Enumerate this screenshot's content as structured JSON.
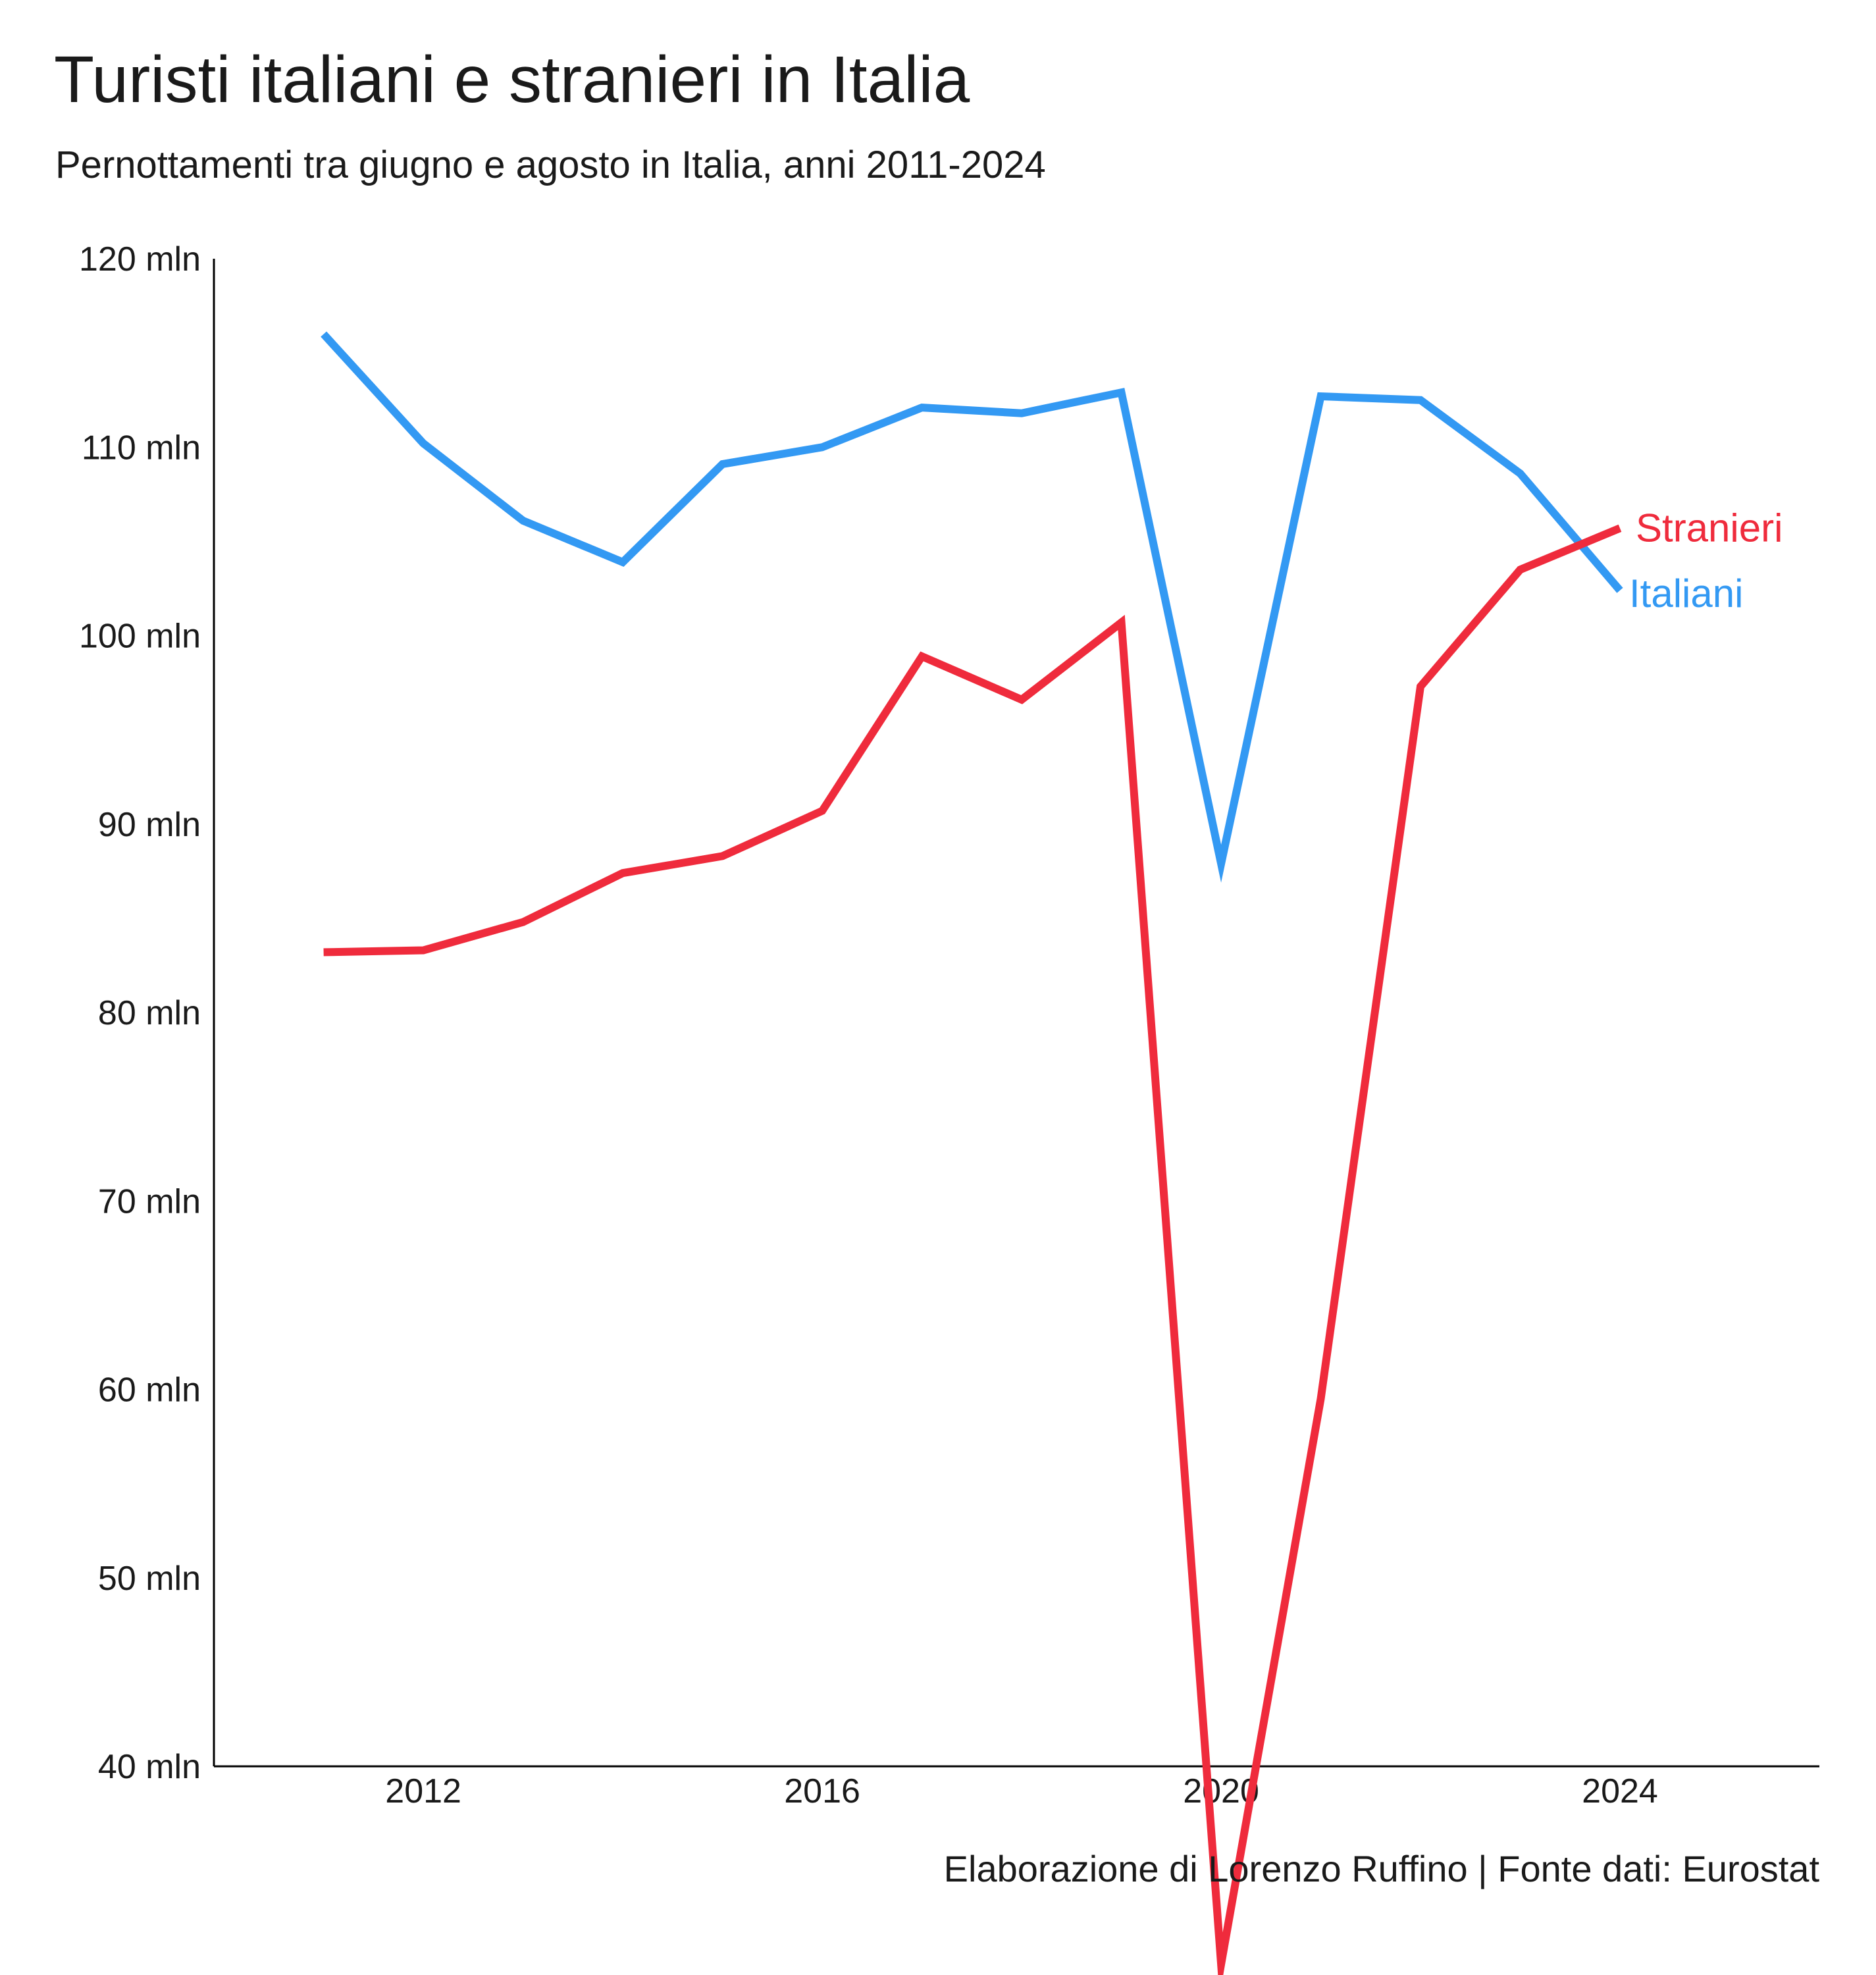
{
  "chart_data": {
    "type": "line",
    "title": "Turisti italiani e stranieri in Italia",
    "subtitle": "Pernottamenti tra giugno e agosto in Italia, anni 2011-2024",
    "caption": "Elaborazione di Lorenzo Ruffino | Fonte dati: Eurostat",
    "xlabel": "",
    "ylabel": "",
    "x": [
      2011,
      2012,
      2013,
      2014,
      2015,
      2016,
      2017,
      2018,
      2019,
      2020,
      2021,
      2022,
      2023,
      2024
    ],
    "xlim": [
      2009.9,
      2026
    ],
    "ylim": [
      40,
      120
    ],
    "x_ticks": [
      2012,
      2016,
      2020,
      2024
    ],
    "x_tick_labels": [
      "2012",
      "2016",
      "2020",
      "2024"
    ],
    "y_ticks": [
      40,
      50,
      60,
      70,
      80,
      90,
      100,
      110,
      120
    ],
    "y_tick_labels": [
      "40 mln",
      "50 mln",
      "60 mln",
      "70 mln",
      "80 mln",
      "90 mln",
      "100 mln",
      "110 mln",
      "120 mln"
    ],
    "grid": false,
    "legend": "direct labels at line ends",
    "series": [
      {
        "name": "Italiani",
        "color": "#3399f3",
        "values": [
          116.0,
          110.2,
          106.1,
          103.9,
          109.1,
          110.0,
          112.1,
          111.8,
          112.9,
          87.9,
          112.7,
          112.5,
          108.6,
          102.4
        ]
      },
      {
        "name": "Stranieri",
        "color": "#ef2b3c",
        "values": [
          83.2,
          83.3,
          84.8,
          87.4,
          88.3,
          90.7,
          98.9,
          96.6,
          100.7,
          29.5,
          59.5,
          97.3,
          103.5,
          105.7
        ]
      }
    ]
  }
}
